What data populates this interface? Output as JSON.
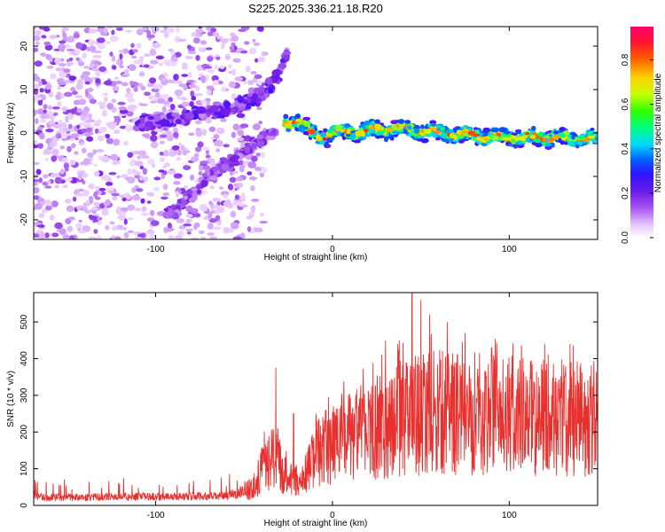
{
  "title": "S225.2025.336.21.18.R20",
  "chart_data": [
    {
      "type": "heatmap",
      "xlabel": "Height of straight line (km)",
      "ylabel": "Frequency (Hz)",
      "xlim": [
        -169,
        150
      ],
      "ylim": [
        -24.5,
        24.5
      ],
      "xticks": [
        -100,
        0,
        100
      ],
      "yticks": [
        -20,
        -10,
        0,
        10,
        20
      ],
      "colorbar": {
        "label": "Normalized spectral amplitude",
        "range": [
          0,
          0.95
        ],
        "ticks": [
          0.0,
          0.2,
          0.4,
          0.6,
          0.8
        ],
        "tick_labels": [
          "0.0",
          "0.2",
          "0.4",
          "0.6",
          "0.8"
        ],
        "colors": [
          "#ffffff",
          "#e6c6ff",
          "#b06cf0",
          "#7a1fe6",
          "#3c10ff",
          "#0060ff",
          "#00d8ff",
          "#00ff60",
          "#c8ff00",
          "#ffd000",
          "#ff4000",
          "#ff0060"
        ]
      },
      "features": {
        "noise_region_x": [
          -169,
          -48
        ],
        "upper_branch": [
          [
            -110,
            2
          ],
          [
            -80,
            4
          ],
          [
            -55,
            6
          ],
          [
            -38,
            9
          ],
          [
            -30,
            14
          ],
          [
            -25,
            19
          ]
        ],
        "lower_branch": [
          [
            -95,
            -20
          ],
          [
            -75,
            -12
          ],
          [
            -55,
            -6
          ],
          [
            -42,
            -2
          ],
          [
            -32,
            0
          ]
        ],
        "main_track": [
          [
            -28,
            2
          ],
          [
            -20,
            3
          ],
          [
            -12,
            0
          ],
          [
            -6,
            -1
          ],
          [
            0,
            0
          ],
          [
            20,
            0.5
          ],
          [
            40,
            1
          ],
          [
            60,
            0
          ],
          [
            80,
            -0.5
          ],
          [
            100,
            -1
          ],
          [
            120,
            -1
          ],
          [
            150,
            -1.5
          ]
        ]
      }
    },
    {
      "type": "line",
      "xlabel": "Height of straight line (km)",
      "ylabel": "SNR (10 * v/v)",
      "xlim": [
        -169,
        150
      ],
      "ylim": [
        0,
        580
      ],
      "xticks": [
        -100,
        0,
        100
      ],
      "yticks": [
        0,
        100,
        200,
        300,
        400,
        500
      ],
      "series": [
        {
          "name": "SNR",
          "color": "#e8302e",
          "envelope": [
            [
              -169,
              22
            ],
            [
              -60,
              25
            ],
            [
              -45,
              50
            ],
            [
              -38,
              120
            ],
            [
              -33,
              140
            ],
            [
              -25,
              80
            ],
            [
              -18,
              60
            ],
            [
              -10,
              150
            ],
            [
              0,
              180
            ],
            [
              20,
              220
            ],
            [
              40,
              260
            ],
            [
              60,
              275
            ],
            [
              80,
              270
            ],
            [
              100,
              265
            ],
            [
              120,
              250
            ],
            [
              150,
              260
            ]
          ],
          "peaks": [
            [
              -32,
              375
            ],
            [
              -22,
              250
            ],
            [
              30,
              450
            ],
            [
              37,
              440
            ],
            [
              45,
              590
            ],
            [
              50,
              560
            ],
            [
              55,
              520
            ],
            [
              65,
              500
            ],
            [
              75,
              470
            ],
            [
              90,
              430
            ],
            [
              120,
              440
            ]
          ]
        }
      ]
    }
  ]
}
